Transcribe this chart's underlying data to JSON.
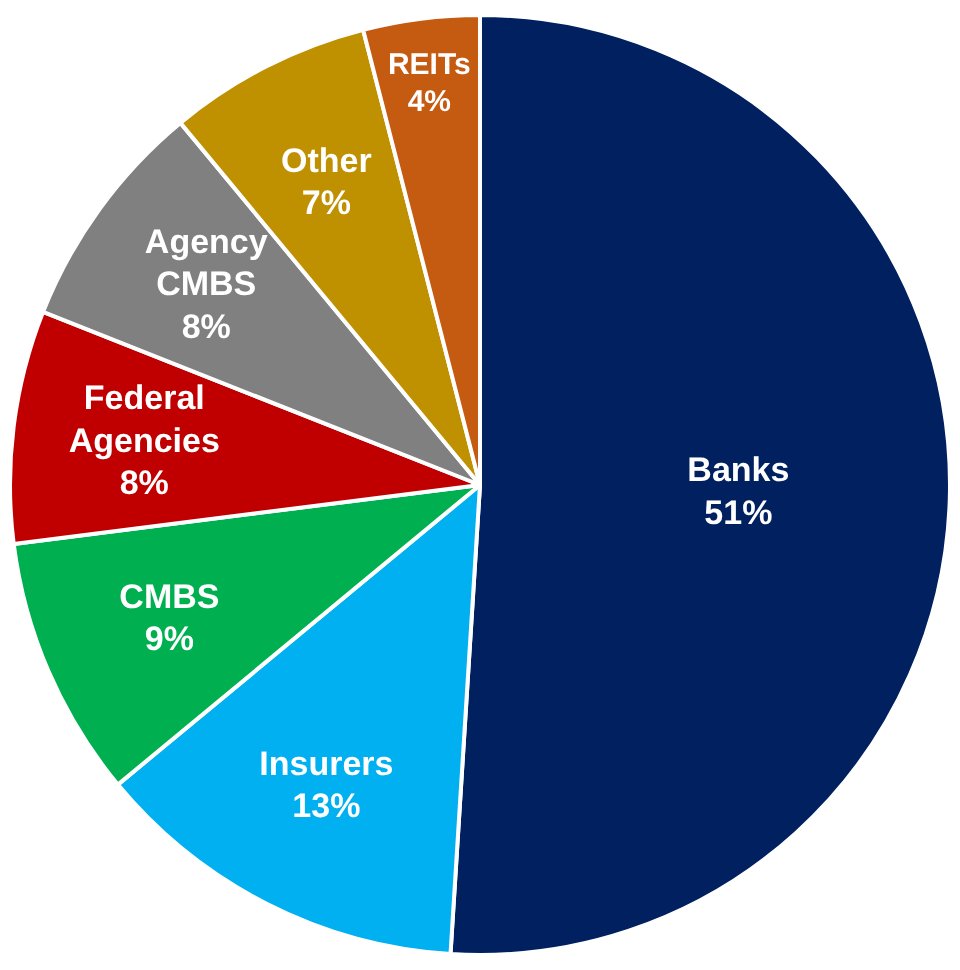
{
  "chart_data": {
    "type": "pie",
    "categories": [
      "Banks",
      "Insurers",
      "CMBS",
      "Federal Agencies",
      "Agency CMBS",
      "Other",
      "REITs"
    ],
    "values": [
      51,
      13,
      9,
      8,
      8,
      7,
      4
    ],
    "colors": [
      "#002060",
      "#00b0f0",
      "#00b050",
      "#c00000",
      "#808080",
      "#bf9000",
      "#c55a11"
    ],
    "value_labels": [
      "51%",
      "13%",
      "9%",
      "8%",
      "8%",
      "7%",
      "4%"
    ]
  }
}
